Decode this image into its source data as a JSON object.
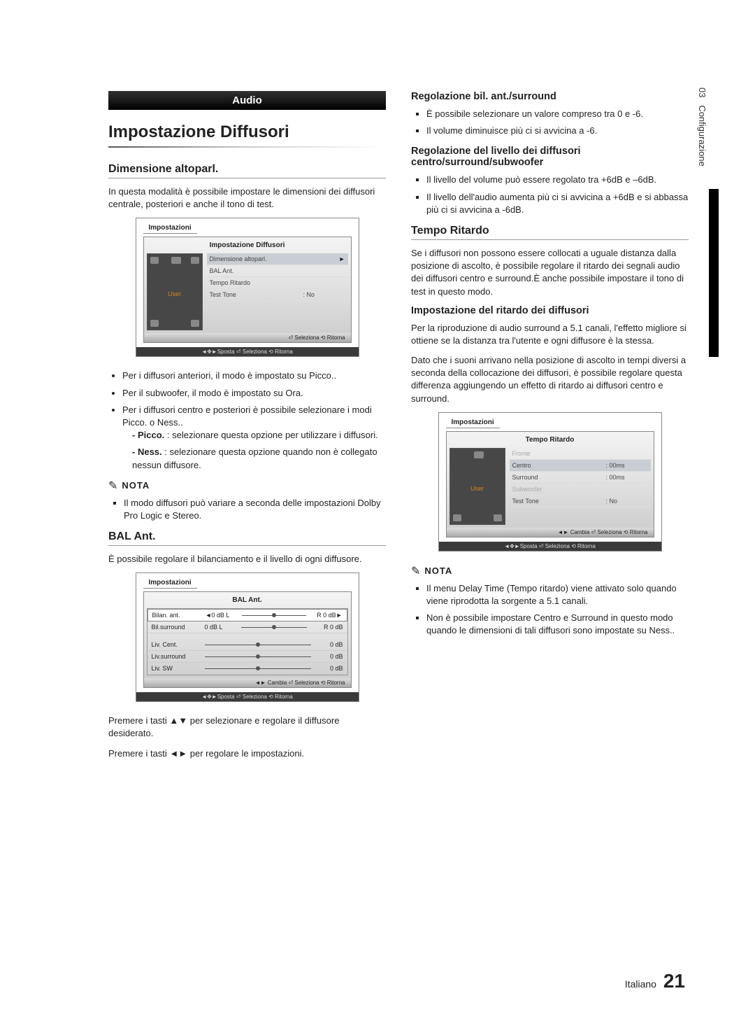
{
  "vertical": {
    "chapter": "03",
    "section": "Configurazione"
  },
  "header": {
    "audio": "Audio"
  },
  "main": {
    "title": "Impostazione Diffusori",
    "dim_heading": "Dimensione altoparl.",
    "dim_intro": "In questa modalità è possibile impostare le dimensioni dei diffusori centrale, posteriori e anche il tono di test.",
    "dim_b1": "Per i diffusori anteriori, il modo è impostato su Picco..",
    "dim_b2": "Per il subwoofer, il modo è impostato su Ora.",
    "dim_b3": "Per i diffusori centro e posteriori è possibile selezionare i modi Picco. o Ness..",
    "dim_s1_label": "Picco.",
    "dim_s1_text": ":  selezionare questa opzione per utilizzare i diffusori.",
    "dim_s2_label": "Ness.",
    "dim_s2_text": ": selezionare questa opzione quando non è collegato nessun diffusore.",
    "nota_label": "NOTA",
    "nota1": "Il modo diffusori può variare a seconda delle impostazioni Dolby Pro Logic e Stereo.",
    "bal_heading": "BAL Ant.",
    "bal_intro": "È possibile regolare il bilanciamento e il livello di ogni diffusore.",
    "instr1": "Premere i tasti ▲▼ per selezionare e regolare il diffusore desiderato.",
    "instr2": "Premere i tasti ◄► per regolare le impostazioni."
  },
  "right": {
    "reg_heading": "Regolazione bil. ant./surround",
    "reg_b1": "È possibile selezionare un valore compreso tra 0 e -6.",
    "reg_b2": "Il volume diminuisce più ci si avvicina a -6.",
    "lvl_heading": "Regolazione del livello dei diffusori centro/surround/subwoofer",
    "lvl_b1": "Il livello del volume può essere regolato tra +6dB e –6dB.",
    "lvl_b2": "Il livello dell'audio aumenta più ci si avvicina a +6dB e si abbassa più ci si avvicina a -6dB.",
    "tempo_heading": "Tempo Ritardo",
    "tempo_p": "Se i diffusori non possono essere collocati a uguale distanza dalla posizione di ascolto, è possibile regolare il ritardo dei segnali audio dei diffusori centro e surround.È anche possibile impostare il tono di test in questo modo.",
    "delay_heading": "Impostazione del ritardo dei diffusori",
    "delay_p1": "Per la riproduzione di audio surround a 5.1 canali, l'effetto migliore si ottiene se la distanza tra l'utente e ogni diffusore è la stessa.",
    "delay_p2": "Dato che i suoni arrivano nella posizione di ascolto in tempi diversi a seconda della collocazione dei diffusori, è possibile regolare questa differenza aggiungendo un effetto di ritardo ai diffusori centro e surround.",
    "nota2a": "Il menu Delay Time (Tempo ritardo) viene attivato solo quando viene riprodotta la sorgente a 5.1 canali.",
    "nota2b": "Non è possibile impostare Centro e Surround in questo modo quando le dimensioni di tali diffusori sono impostate su Ness.."
  },
  "ui1": {
    "box_title": "Impostazioni",
    "panel_title": "Impostazione Diffusori",
    "user": "User",
    "r1": "Dimensione altoparl.",
    "r2": "BAL Ant.",
    "r3": "Tempo Ritardo",
    "r4_l": "Test Tone",
    "r4_v": "No",
    "footer1": "⏎ Seleziona   ⟲ Ritorna",
    "footer2": "◄✥►Sposta   ⏎ Seleziona   ⟲ Ritorna"
  },
  "ui2": {
    "box_title": "Impostazioni",
    "panel_title": "BAL Ant.",
    "r1_l": "Bilan. ant.",
    "r1_left": "◄0 dB L",
    "r1_right": "R  0 dB►",
    "r2_l": "Bil.surround",
    "r2_left": "0 dB L",
    "r2_right": "R  0 dB",
    "r3_l": "Liv. Cent.",
    "r3_v": "0 dB",
    "r4_l": "Liv.surround",
    "r4_v": "0 dB",
    "r5_l": "Liv. SW",
    "r5_v": "0 dB",
    "footer1": "◄► Cambia  ⏎ Seleziona   ⟲ Ritorna",
    "footer2": "◄✥►Sposta   ⏎ Seleziona   ⟲ Ritorna"
  },
  "ui3": {
    "box_title": "Impostazioni",
    "panel_title": "Tempo Ritardo",
    "user": "User",
    "r1": "Fronte",
    "r2_l": "Centro",
    "r2_v": "00ms",
    "r3_l": "Surround",
    "r3_v": "00ms",
    "r4": "Subwoofer",
    "r5_l": "Test Tone",
    "r5_v": "No",
    "footer1": "◄► Cambia  ⏎ Seleziona   ⟲ Ritorna",
    "footer2": "◄✥►Sposta   ⏎ Seleziona   ⟲ Ritorna"
  },
  "footer": {
    "lang": "Italiano",
    "page": "21"
  }
}
